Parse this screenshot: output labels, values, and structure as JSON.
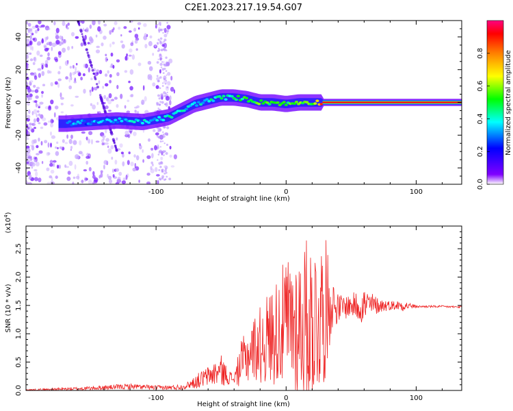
{
  "figure_title": "C2E1.2023.217.19.54.G07",
  "chart_data": [
    {
      "type": "heatmap",
      "xlabel": "Height of straight line (km)",
      "ylabel": "Frequency (Hz)",
      "xlim": [
        -200,
        135
      ],
      "ylim": [
        -50,
        50
      ],
      "x_ticks": [
        -100,
        0,
        100
      ],
      "y_ticks": [
        -40,
        -20,
        0,
        20,
        40
      ],
      "colorbar": {
        "label": "Normalized spectral amplitude",
        "range": [
          0,
          1
        ],
        "ticks": [
          0.0,
          0.2,
          0.4,
          0.6,
          0.8
        ],
        "tick_labels": [
          "0.0",
          "0.2",
          "0.4",
          "0.6",
          "0.8"
        ],
        "colors": [
          "#ffffff",
          "#8000ff",
          "#0000ff",
          "#00ffff",
          "#00ff00",
          "#ffff00",
          "#ff8000",
          "#ff0000",
          "#ff0080"
        ]
      },
      "ridge": {
        "x": [
          -170,
          -150,
          -130,
          -110,
          -90,
          -80,
          -70,
          -60,
          -50,
          -40,
          -30,
          -20,
          -10,
          0,
          10,
          20,
          30,
          60,
          100,
          135
        ],
        "y": [
          -13,
          -12,
          -11,
          -12,
          -9,
          -5,
          -1,
          1,
          3,
          3,
          2,
          0,
          0,
          -1,
          0,
          0,
          0,
          0,
          0,
          0
        ],
        "amplitude": [
          0.3,
          0.3,
          0.35,
          0.35,
          0.4,
          0.4,
          0.35,
          0.4,
          0.45,
          0.45,
          0.5,
          0.55,
          0.5,
          0.5,
          0.55,
          0.5,
          0.95,
          0.97,
          0.97,
          0.97
        ]
      }
    },
    {
      "type": "line",
      "xlabel": "Height of straight line (km)",
      "ylabel": "SNR (10 * v/v)",
      "scale_label": "(x10",
      "scale_exponent": "4",
      "scale_close": ")",
      "xlim": [
        -200,
        135
      ],
      "ylim": [
        0,
        2.9
      ],
      "x_ticks": [
        -100,
        0,
        100
      ],
      "y_ticks": [
        0.0,
        0.5,
        1.0,
        1.5,
        2.0,
        2.5
      ],
      "y_tick_labels": [
        "0.0",
        "0.5",
        "1.0",
        "1.5",
        "2.0",
        "2.5"
      ],
      "color": "#ee2222",
      "series": [
        {
          "x": [
            -200,
            -180,
            -160,
            -140,
            -120,
            -100,
            -90,
            -80,
            -75,
            -70,
            -65,
            -60,
            -55,
            -50,
            -45,
            -40,
            -35,
            -30,
            -25,
            -20,
            -15,
            -10,
            -5,
            0,
            5,
            10,
            15,
            20,
            25,
            30,
            35,
            40,
            50,
            60,
            70,
            80,
            90,
            100,
            110,
            120,
            135
          ],
          "y": [
            0.01,
            0.02,
            0.03,
            0.05,
            0.07,
            0.05,
            0.05,
            0.06,
            0.1,
            0.15,
            0.2,
            0.25,
            0.3,
            0.35,
            0.25,
            0.2,
            0.45,
            0.6,
            0.75,
            0.8,
            0.9,
            1.0,
            1.1,
            1.15,
            1.2,
            1.15,
            1.2,
            1.2,
            1.3,
            1.45,
            1.55,
            1.45,
            1.5,
            1.5,
            1.5,
            1.5,
            1.5,
            1.48,
            1.48,
            1.48,
            1.47
          ],
          "spread": [
            0.01,
            0.02,
            0.03,
            0.04,
            0.05,
            0.04,
            0.04,
            0.05,
            0.06,
            0.12,
            0.15,
            0.18,
            0.22,
            0.28,
            0.15,
            0.08,
            0.4,
            0.5,
            0.55,
            0.7,
            0.8,
            0.9,
            1.0,
            1.2,
            1.3,
            1.4,
            1.5,
            1.5,
            1.4,
            1.3,
            0.5,
            0.25,
            0.2,
            0.35,
            0.15,
            0.08,
            0.1,
            0.02,
            0.02,
            0.02,
            0.02
          ]
        }
      ]
    }
  ]
}
